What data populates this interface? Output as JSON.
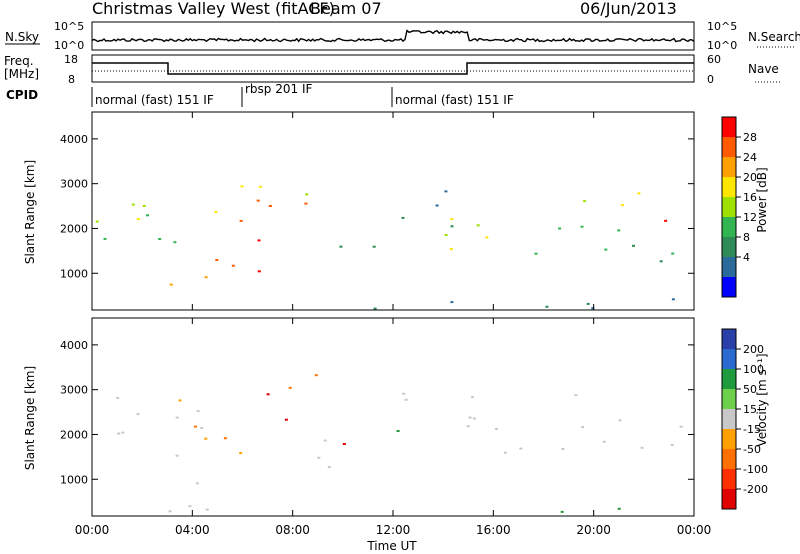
{
  "header": {
    "station": "Christmas Valley West (fitACF)",
    "beam": "Beam 07",
    "date": "06/Jun/2013"
  },
  "strip_panels": {
    "noise": {
      "left_label": "N.Sky",
      "right_label": "N.Search",
      "left_ticks": [
        "10^5",
        "10^0"
      ],
      "right_ticks": [
        "10^5",
        "10^0"
      ]
    },
    "freq": {
      "left_label_1": "Freq.",
      "left_label_2": "[MHz]",
      "right_label": "Nave",
      "left_ticks": [
        "18",
        "8"
      ],
      "right_ticks": [
        "60",
        "0"
      ]
    },
    "cpid": {
      "label": "CPID",
      "segments": [
        {
          "text": "normal (fast) 151 IF",
          "start_hour": 0,
          "end_hour": 6
        },
        {
          "text": "rbsp 201 IF",
          "start_hour": 6,
          "end_hour": 12
        },
        {
          "text": "normal (fast) 151 IF",
          "start_hour": 12,
          "end_hour": 24
        }
      ]
    }
  },
  "colorbars": {
    "power": {
      "label": "Power [dB]",
      "ticks": [
        "28",
        "24",
        "20",
        "16",
        "12",
        "8",
        "4"
      ],
      "colors": [
        "#ff0000",
        "#ff5a00",
        "#ffa000",
        "#ffe600",
        "#9ee000",
        "#32b450",
        "#2e8b57",
        "#2a6a9a",
        "#0000ff"
      ]
    },
    "velocity": {
      "label": "Velocity [m s⁻¹]",
      "ticks": [
        "200",
        "100",
        "50",
        "15",
        "-15",
        "-50",
        "-100",
        "-200"
      ],
      "colors": [
        "#2a3fa8",
        "#2a6ad0",
        "#1f9a3c",
        "#6cd04c",
        "#c8c8c8",
        "#ffa000",
        "#ff7000",
        "#ff3000",
        "#e00000"
      ]
    }
  },
  "panels": {
    "power": {
      "ylabel": "Slant Range [km]"
    },
    "velocity": {
      "ylabel": "Slant Range [km]"
    }
  },
  "chart_data": [
    {
      "type": "heatmap",
      "name": "power",
      "xlabel": "Time UT",
      "ylabel": "Slant Range [km]",
      "xlim": [
        0,
        24
      ],
      "ylim": [
        180,
        4600
      ],
      "x_ticks": [
        "00:00",
        "04:00",
        "08:00",
        "12:00",
        "16:00",
        "20:00",
        "00:00"
      ],
      "y_ticks": [
        1000,
        2000,
        3000,
        4000
      ],
      "value_range": [
        0,
        30
      ],
      "regions": [
        {
          "t0": 0.0,
          "t1": 3.0,
          "r0": 2000,
          "r1": 3100,
          "v": 14
        },
        {
          "t0": 0.6,
          "t1": 3.0,
          "r0": 2100,
          "r1": 2500,
          "v": 22
        },
        {
          "t0": 0.0,
          "t1": 4.5,
          "r0": 1300,
          "r1": 1800,
          "v": 9
        },
        {
          "t0": 2.0,
          "t1": 6.5,
          "r0": 1050,
          "r1": 1450,
          "v": 27
        },
        {
          "t0": 3.0,
          "t1": 6.0,
          "r0": 300,
          "r1": 1000,
          "v": 24
        },
        {
          "t0": 5.5,
          "t1": 8.0,
          "r0": 1000,
          "r1": 2200,
          "v": 26
        },
        {
          "t0": 6.5,
          "t1": 9.0,
          "r0": 1800,
          "r1": 2800,
          "v": 28
        },
        {
          "t0": 4.5,
          "t1": 7.0,
          "r0": 2300,
          "r1": 3300,
          "v": 20
        },
        {
          "t0": 8.0,
          "t1": 9.8,
          "r0": 2600,
          "r1": 3300,
          "v": 17
        },
        {
          "t0": 9.5,
          "t1": 11.5,
          "r0": 1500,
          "r1": 2600,
          "v": 8
        },
        {
          "t0": 12.0,
          "t1": 14.5,
          "r0": 2000,
          "r1": 3300,
          "v": 7
        },
        {
          "t0": 14.0,
          "t1": 17.5,
          "r0": 1500,
          "r1": 2900,
          "v": 16
        },
        {
          "t0": 17.0,
          "t1": 24.0,
          "r0": 1100,
          "r1": 2100,
          "v": 11
        },
        {
          "t0": 20.8,
          "t1": 22.8,
          "r0": 2000,
          "r1": 3000,
          "v": 20
        },
        {
          "t0": 22.0,
          "t1": 24.0,
          "r0": 1700,
          "r1": 2300,
          "v": 26
        },
        {
          "t0": 18.8,
          "t1": 20.4,
          "r0": 2400,
          "r1": 3000,
          "v": 14
        },
        {
          "t0": 0.0,
          "t1": 24.0,
          "r0": 200,
          "r1": 450,
          "v": 6
        }
      ]
    },
    {
      "type": "heatmap",
      "name": "velocity",
      "xlabel": "Time UT",
      "ylabel": "Slant Range [km]",
      "xlim": [
        0,
        24
      ],
      "ylim": [
        180,
        4600
      ],
      "x_ticks": [
        "00:00",
        "04:00",
        "08:00",
        "12:00",
        "16:00",
        "20:00",
        "00:00"
      ],
      "y_ticks": [
        1000,
        2000,
        3000,
        4000
      ],
      "value_range": [
        -250,
        250
      ],
      "regions": [
        {
          "t0": 0.0,
          "t1": 4.5,
          "r0": 1400,
          "r1": 2900,
          "v": 0
        },
        {
          "t0": 1.0,
          "t1": 4.0,
          "r0": 2600,
          "r1": 3000,
          "v": -40
        },
        {
          "t0": 2.5,
          "t1": 6.0,
          "r0": 300,
          "r1": 1400,
          "v": 0
        },
        {
          "t0": 4.0,
          "t1": 7.5,
          "r0": 1600,
          "r1": 2600,
          "v": -45
        },
        {
          "t0": 5.5,
          "t1": 8.0,
          "r0": 2300,
          "r1": 3000,
          "v": -210
        },
        {
          "t0": 6.5,
          "t1": 9.5,
          "r0": 2800,
          "r1": 3400,
          "v": -60
        },
        {
          "t0": 8.5,
          "t1": 10.0,
          "r0": 1000,
          "r1": 2600,
          "v": 0
        },
        {
          "t0": 9.5,
          "t1": 11.7,
          "r0": 1700,
          "r1": 2300,
          "v": -230
        },
        {
          "t0": 11.5,
          "t1": 12.3,
          "r0": 1600,
          "r1": 2200,
          "v": 60
        },
        {
          "t0": 12.0,
          "t1": 15.5,
          "r0": 2000,
          "r1": 3400,
          "v": 0
        },
        {
          "t0": 12.0,
          "t1": 13.0,
          "r0": 2900,
          "r1": 3200,
          "v": 50
        },
        {
          "t0": 15.0,
          "t1": 24.0,
          "r0": 1400,
          "r1": 2500,
          "v": 0
        },
        {
          "t0": 18.8,
          "t1": 20.2,
          "r0": 2500,
          "r1": 3300,
          "v": 0
        },
        {
          "t0": 22.5,
          "t1": 24.0,
          "r0": 200,
          "r1": 450,
          "v": -60
        },
        {
          "t0": 12.0,
          "t1": 22.0,
          "r0": 200,
          "r1": 400,
          "v": 40
        }
      ]
    }
  ]
}
